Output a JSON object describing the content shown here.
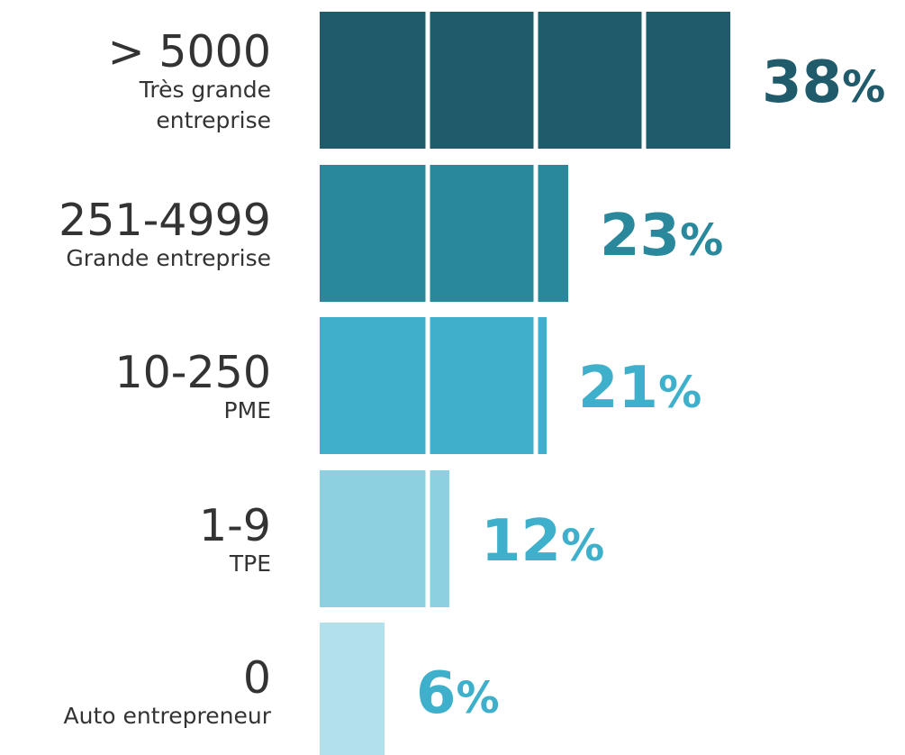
{
  "chart_data": {
    "type": "bar",
    "orientation": "horizontal",
    "categories": [
      {
        "range": "> 5000",
        "description": [
          "Très grande",
          "entreprise"
        ]
      },
      {
        "range": "251-4999",
        "description": [
          "Grande entreprise"
        ]
      },
      {
        "range": "10-250",
        "description": [
          "PME"
        ]
      },
      {
        "range": "1-9",
        "description": [
          "TPE"
        ]
      },
      {
        "range": "0",
        "description": [
          "Auto entrepreneur"
        ]
      }
    ],
    "values": [
      38,
      23,
      21,
      12,
      6
    ],
    "value_labels": [
      "38%",
      "23%",
      "21%",
      "12%",
      "6%"
    ],
    "unit": "%",
    "segment_size": 10,
    "colors": [
      "#1f5b6a",
      "#2a889c",
      "#3eb0cb",
      "#8dd1e0",
      "#b3e1eb"
    ],
    "label_colors": [
      "#1f5b6a",
      "#2a889c",
      "#3eb0cb",
      "#3eb0cb",
      "#3eb0cb"
    ],
    "grid": false,
    "legend": "none"
  }
}
